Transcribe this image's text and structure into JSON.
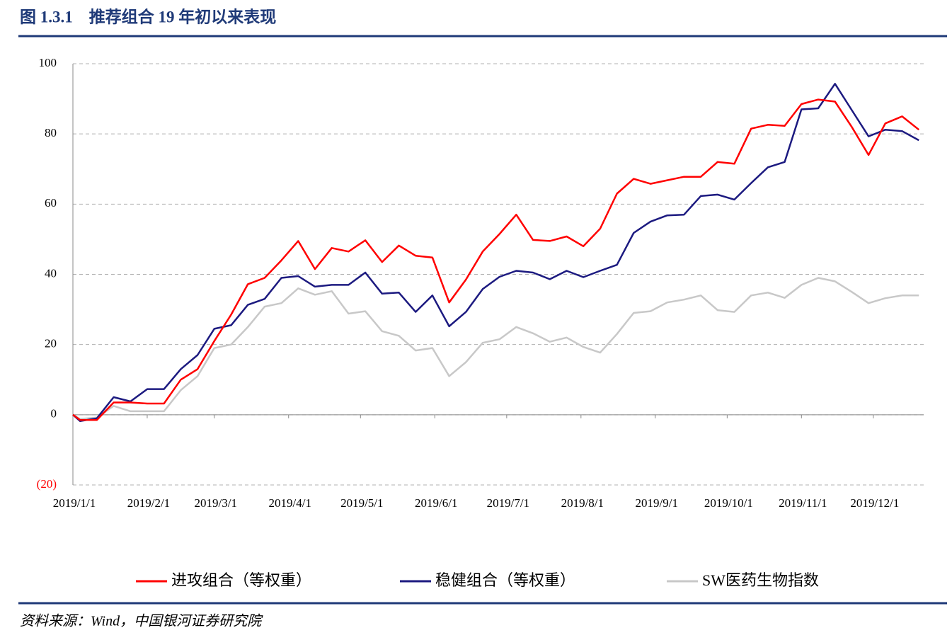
{
  "header": {
    "title": "图 1.3.1    推荐组合 19 年初以来表现"
  },
  "chart_data": {
    "type": "line",
    "x": [
      "2019-01-01",
      "2019-01-04",
      "2019-01-11",
      "2019-01-18",
      "2019-01-25",
      "2019-02-01",
      "2019-02-08",
      "2019-02-15",
      "2019-02-22",
      "2019-03-01",
      "2019-03-08",
      "2019-03-15",
      "2019-03-22",
      "2019-03-29",
      "2019-04-05",
      "2019-04-12",
      "2019-04-19",
      "2019-04-26",
      "2019-05-03",
      "2019-05-10",
      "2019-05-17",
      "2019-05-24",
      "2019-05-31",
      "2019-06-07",
      "2019-06-14",
      "2019-06-21",
      "2019-06-28",
      "2019-07-05",
      "2019-07-12",
      "2019-07-19",
      "2019-07-26",
      "2019-08-02",
      "2019-08-09",
      "2019-08-16",
      "2019-08-23",
      "2019-08-30",
      "2019-09-06",
      "2019-09-13",
      "2019-09-20",
      "2019-09-27",
      "2019-10-04",
      "2019-10-11",
      "2019-10-18",
      "2019-10-25",
      "2019-11-01",
      "2019-11-08",
      "2019-11-15",
      "2019-11-22",
      "2019-11-29",
      "2019-12-06",
      "2019-12-13",
      "2019-12-20"
    ],
    "series": [
      {
        "name": "进攻组合（等权重）",
        "color": "#ff0000",
        "values": [
          0,
          -1.5,
          -1.5,
          3.5,
          3.5,
          3.2,
          3.2,
          10,
          13,
          21,
          28.5,
          37.2,
          39,
          44,
          49.5,
          41.5,
          47.5,
          46.5,
          49.7,
          43.5,
          48.2,
          45.3,
          44.8,
          32,
          38.5,
          46.5,
          51.5,
          57,
          49.8,
          49.5,
          50.8,
          48,
          53,
          63,
          67.2,
          65.8,
          66.8,
          67.8,
          67.8,
          72,
          71.5,
          81.5,
          82.6,
          82.3,
          88.5,
          89.8,
          89.2,
          82,
          74,
          83,
          85,
          81.2
        ]
      },
      {
        "name": "稳健组合（等权重）",
        "color": "#1c1a80",
        "values": [
          0,
          -1.8,
          -1,
          5,
          3.8,
          7.3,
          7.3,
          13,
          17,
          24.5,
          25.5,
          31.3,
          33,
          39,
          39.5,
          36.5,
          37,
          37,
          40.5,
          34.5,
          34.8,
          29.3,
          34,
          25.2,
          29.3,
          35.8,
          39.3,
          41,
          40.5,
          38.6,
          41,
          39.2,
          41,
          42.7,
          51.8,
          55,
          56.8,
          57,
          62.3,
          62.7,
          61.3,
          66,
          70.5,
          72,
          87,
          87.3,
          94.3,
          86.8,
          79.3,
          81.2,
          80.8,
          78.2
        ]
      },
      {
        "name": "SW医药生物指数",
        "color": "#c8c8c8",
        "values": [
          0,
          -1.2,
          -0.8,
          2.5,
          1,
          1,
          1,
          7,
          11,
          19,
          20,
          25,
          30.8,
          31.8,
          36,
          34.2,
          35.2,
          28.8,
          29.5,
          23.8,
          22.5,
          18.3,
          19,
          11,
          15,
          20.5,
          21.5,
          25,
          23.2,
          20.8,
          22,
          19.3,
          17.7,
          23,
          29,
          29.5,
          32,
          32.8,
          34,
          29.8,
          29.3,
          34,
          34.8,
          33.3,
          37,
          39,
          38,
          35,
          31.8,
          33.2,
          34,
          34
        ]
      }
    ],
    "xlim": [
      "2019-01-01",
      "2019-12-22"
    ],
    "xticks": [
      {
        "value": "2019-01-01",
        "label": "2019/1/1"
      },
      {
        "value": "2019-02-01",
        "label": "2019/2/1"
      },
      {
        "value": "2019-03-01",
        "label": "2019/3/1"
      },
      {
        "value": "2019-04-01",
        "label": "2019/4/1"
      },
      {
        "value": "2019-05-01",
        "label": "2019/5/1"
      },
      {
        "value": "2019-06-01",
        "label": "2019/6/1"
      },
      {
        "value": "2019-07-01",
        "label": "2019/7/1"
      },
      {
        "value": "2019-08-01",
        "label": "2019/8/1"
      },
      {
        "value": "2019-09-01",
        "label": "2019/9/1"
      },
      {
        "value": "2019-10-01",
        "label": "2019/10/1"
      },
      {
        "value": "2019-11-01",
        "label": "2019/11/1"
      },
      {
        "value": "2019-12-01",
        "label": "2019/12/1"
      }
    ],
    "ylim": [
      -20,
      100
    ],
    "yticks": [
      {
        "value": -20,
        "label": "(20)"
      },
      0,
      20,
      40,
      60,
      80,
      100
    ],
    "grid": true,
    "legend": "bottom"
  },
  "source": "资料来源：Wind，中国银河证券研究院"
}
